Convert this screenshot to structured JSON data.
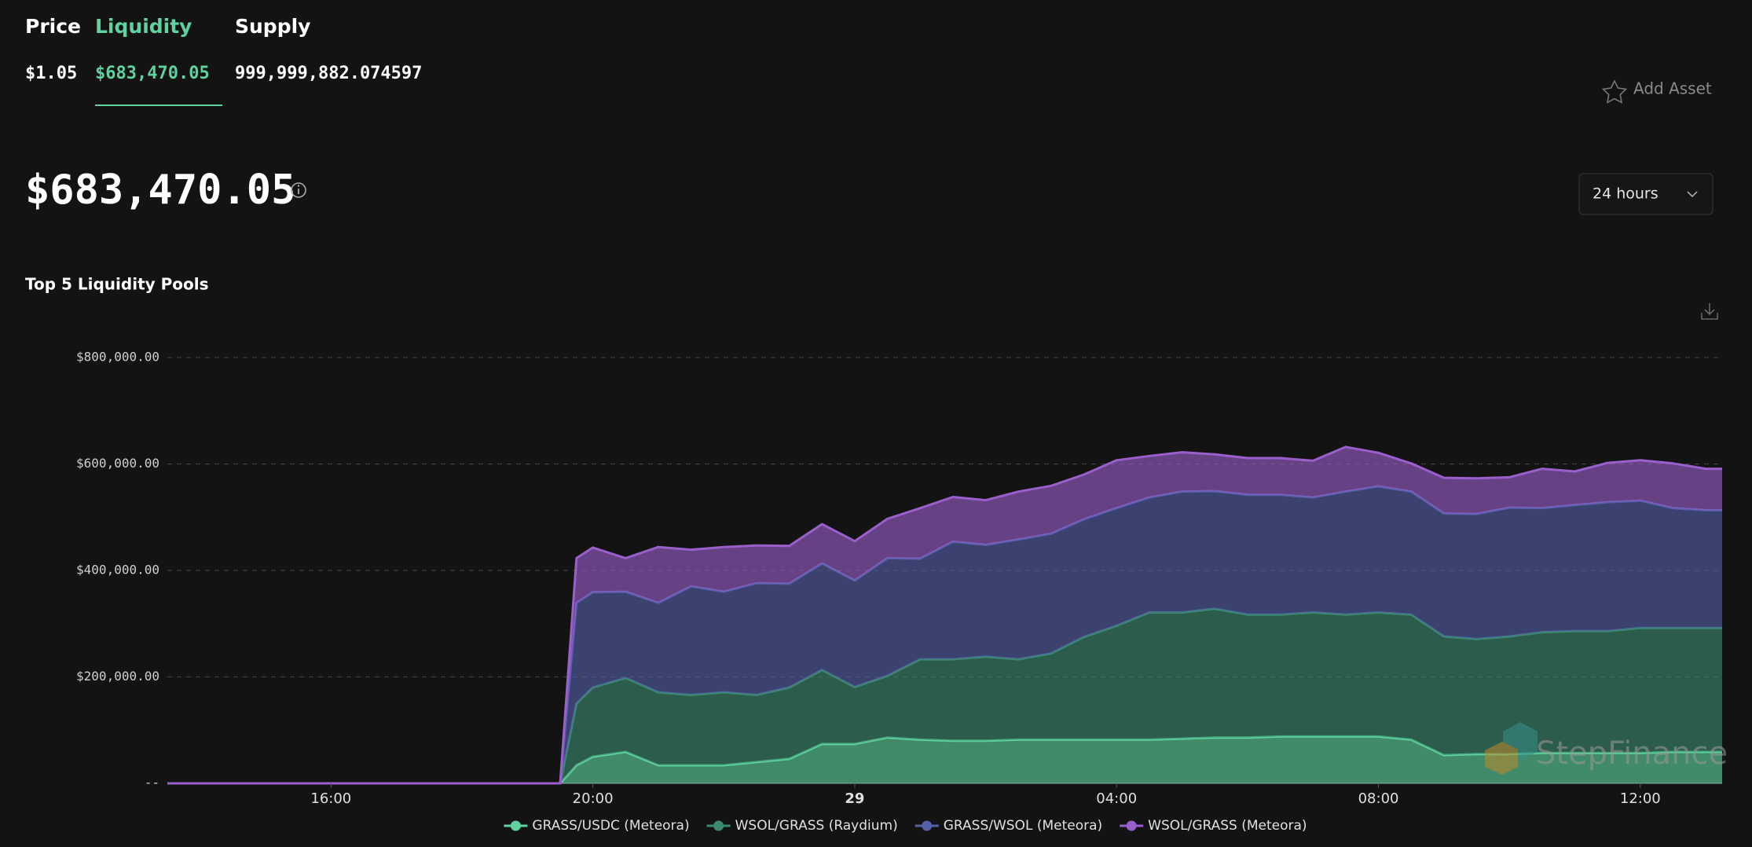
{
  "header": {
    "tabs": [
      "Price",
      "Liquidity",
      "Supply"
    ],
    "tab_values": [
      "$1.05",
      "$683,470.05",
      "999,999,882.074597"
    ],
    "add_asset": "Add Asset",
    "big_value": "$683,470.05",
    "range": "24 hours",
    "section_title": "Top 5 Liquidity Pools",
    "watermark": "StepFinance"
  },
  "chart_data": {
    "type": "area",
    "stacked": true,
    "grid": true,
    "x": [
      13.5,
      19.5,
      19.75,
      20,
      20.5,
      21,
      21.5,
      22,
      22.5,
      23,
      23.5,
      24,
      24.5,
      25,
      25.5,
      26,
      26.5,
      27,
      27.5,
      28,
      28.5,
      29,
      29.5,
      30,
      30.5,
      31,
      31.5,
      32,
      32.5,
      33,
      33.5,
      34,
      34.5,
      35,
      35.5,
      36,
      36.5,
      37,
      37.25
    ],
    "xlim": [
      13.5,
      37.25
    ],
    "xticks": [
      {
        "value": 16,
        "label": "16:00"
      },
      {
        "value": 20,
        "label": "20:00"
      },
      {
        "value": 24,
        "label": "29"
      },
      {
        "value": 28,
        "label": "04:00"
      },
      {
        "value": 32,
        "label": "08:00"
      },
      {
        "value": 36,
        "label": "12:00"
      }
    ],
    "ylim": [
      0,
      800000
    ],
    "yticks": [
      {
        "value": 0,
        "label": "--"
      },
      {
        "value": 200000,
        "label": "$200,000.00"
      },
      {
        "value": 400000,
        "label": "$400,000.00"
      },
      {
        "value": 600000,
        "label": "$600,000.00"
      },
      {
        "value": 800000,
        "label": "$800,000.00"
      }
    ],
    "series": [
      {
        "name": "GRASS/USDC (Meteora)",
        "color": "#5ed39f",
        "values": [
          0,
          0,
          34000,
          50000,
          59000,
          34000,
          34000,
          34000,
          40000,
          46000,
          74000,
          74000,
          86000,
          82000,
          80000,
          80000,
          82000,
          82000,
          82000,
          82000,
          82000,
          84000,
          86000,
          86000,
          88000,
          88000,
          88000,
          88000,
          82000,
          53000,
          55000,
          55000,
          57000,
          57000,
          57000,
          57000,
          59000,
          59000,
          59000
        ]
      },
      {
        "name": "WSOL/GRASS (Raydium)",
        "color": "#3b8a70",
        "values": [
          0,
          0,
          116000,
          130000,
          139000,
          137000,
          132000,
          137000,
          126000,
          134000,
          139000,
          107000,
          116000,
          151000,
          153000,
          158000,
          151000,
          162000,
          193000,
          214000,
          239000,
          237000,
          242000,
          231000,
          229000,
          233000,
          229000,
          233000,
          235000,
          223000,
          216000,
          221000,
          227000,
          229000,
          229000,
          235000,
          233000,
          233000,
          233000
        ]
      },
      {
        "name": "GRASS/WSOL (Meteora)",
        "color": "#5460a8",
        "values": [
          0,
          0,
          189000,
          179000,
          162000,
          168000,
          204000,
          189000,
          210000,
          195000,
          200000,
          200000,
          221000,
          189000,
          221000,
          210000,
          225000,
          225000,
          221000,
          221000,
          216000,
          227000,
          221000,
          225000,
          225000,
          216000,
          231000,
          237000,
          231000,
          231000,
          235000,
          242000,
          233000,
          237000,
          242000,
          239000,
          225000,
          221000,
          221000
        ]
      },
      {
        "name": "WSOL/GRASS (Meteora)",
        "color": "#9a5fcc",
        "values": [
          0,
          0,
          84000,
          84000,
          63000,
          105000,
          69000,
          84000,
          71000,
          71000,
          74000,
          74000,
          74000,
          95000,
          84000,
          84000,
          90000,
          90000,
          84000,
          90000,
          78000,
          74000,
          69000,
          69000,
          69000,
          69000,
          84000,
          63000,
          53000,
          67000,
          67000,
          57000,
          74000,
          63000,
          74000,
          76000,
          84000,
          78000,
          78000
        ]
      }
    ]
  }
}
